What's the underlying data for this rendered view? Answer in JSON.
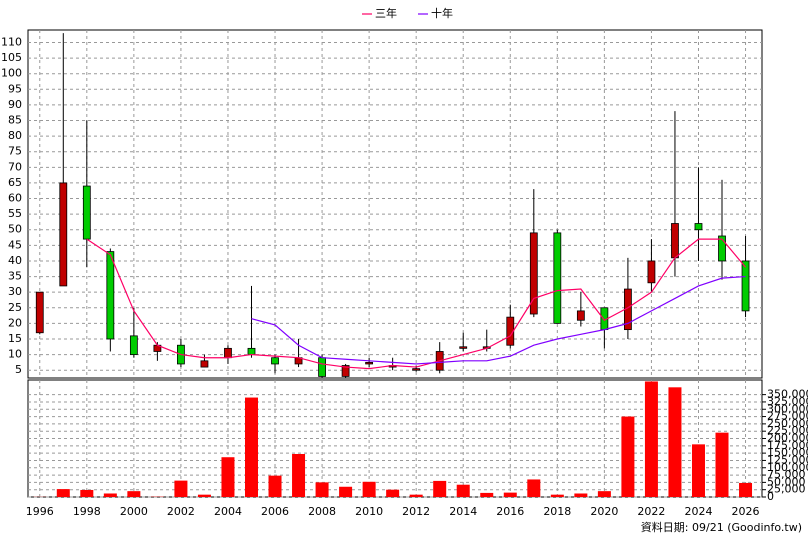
{
  "chart_data": [
    {
      "type": "candlestick",
      "x": [
        1996,
        1997,
        1998,
        1999,
        2000,
        2001,
        2002,
        2003,
        2004,
        2005,
        2006,
        2007,
        2008,
        2009,
        2010,
        2011,
        2012,
        2013,
        2014,
        2015,
        2016,
        2017,
        2018,
        2019,
        2020,
        2021,
        2022,
        2023,
        2024,
        2025,
        2026
      ],
      "open": [
        17,
        32,
        64,
        43,
        16,
        11,
        13,
        6,
        9,
        12,
        9,
        7,
        9,
        3,
        7,
        6,
        5,
        5,
        12,
        12,
        13,
        23,
        49,
        21,
        25,
        18,
        33,
        41,
        52,
        48,
        40
      ],
      "high": [
        30,
        113,
        85,
        44,
        25,
        14,
        15,
        10,
        13,
        32,
        10,
        15,
        10,
        7,
        9,
        9,
        6.5,
        14,
        17,
        18,
        26,
        63,
        50,
        30,
        25,
        41,
        47,
        88,
        70,
        66,
        48
      ],
      "low": [
        16.5,
        32,
        38,
        11,
        9,
        8,
        6,
        6,
        7,
        9,
        4,
        6,
        2.5,
        2.5,
        6,
        5,
        4.5,
        4,
        11,
        11,
        12,
        22,
        20,
        19,
        12,
        15,
        30,
        35,
        40,
        34,
        22
      ],
      "close": [
        30,
        65,
        47,
        15,
        10,
        13,
        7,
        8,
        12,
        10,
        7,
        9,
        3,
        6.5,
        7.5,
        6.5,
        5.5,
        11,
        12.5,
        12.5,
        22,
        49,
        20,
        24,
        18,
        31,
        40,
        52,
        50,
        40,
        24
      ],
      "up_color": "#c00000",
      "down_color": "#00cc00",
      "series": [
        {
          "name": "三年",
          "color": "#ff0066",
          "values": [
            null,
            null,
            47,
            42,
            24,
            13,
            10,
            9,
            9,
            10,
            9.5,
            9,
            7,
            6,
            5.5,
            6.5,
            6,
            8,
            10,
            12,
            16,
            28,
            30.5,
            31,
            21,
            25,
            30,
            41,
            47,
            47,
            38
          ]
        },
        {
          "name": "十年",
          "color": "#8000ff",
          "values": [
            null,
            null,
            null,
            null,
            null,
            null,
            null,
            null,
            null,
            21.5,
            19.5,
            13,
            9,
            8.5,
            8,
            7.5,
            7,
            7.5,
            8,
            8,
            9.5,
            13,
            15,
            16.5,
            18,
            20,
            24,
            28,
            32,
            34.5,
            35
          ]
        }
      ],
      "xlim": [
        1995.5,
        2026.7
      ],
      "xticks": [
        1996,
        1998,
        2000,
        2002,
        2004,
        2006,
        2008,
        2010,
        2012,
        2014,
        2016,
        2018,
        2020,
        2022,
        2024,
        2026
      ],
      "ylim": [
        2.5,
        114
      ],
      "yticks": [
        5,
        10,
        15,
        20,
        25,
        30,
        35,
        40,
        45,
        50,
        55,
        60,
        65,
        70,
        75,
        80,
        85,
        90,
        95,
        100,
        105,
        110
      ],
      "grid": true
    },
    {
      "type": "bar",
      "x": [
        1996,
        1997,
        1998,
        1999,
        2000,
        2001,
        2002,
        2003,
        2004,
        2005,
        2006,
        2007,
        2008,
        2009,
        2010,
        2011,
        2012,
        2013,
        2014,
        2015,
        2016,
        2017,
        2018,
        2019,
        2020,
        2021,
        2022,
        2023,
        2024,
        2025,
        2026
      ],
      "values": [
        500,
        27000,
        24000,
        12000,
        20000,
        1000,
        56000,
        8000,
        136000,
        340000,
        73000,
        147000,
        50000,
        35000,
        52000,
        25000,
        8000,
        55000,
        42000,
        14000,
        15000,
        60000,
        8000,
        12000,
        20000,
        275000,
        395000,
        375000,
        180000,
        220000,
        48000
      ],
      "color": "#ff0000",
      "ylim": [
        0,
        400000
      ],
      "yticks": [
        0,
        {
          "value": 25000,
          "label": "25,000"
        },
        {
          "value": 50000,
          "label": "50,000"
        },
        {
          "value": 75000,
          "label": "75,000"
        },
        {
          "value": 100000,
          "label": "100,000"
        },
        {
          "value": 125000,
          "label": "125,000"
        },
        {
          "value": 150000,
          "label": "150,000"
        },
        {
          "value": 175000,
          "label": "175,000"
        },
        {
          "value": 200000,
          "label": "200,000"
        },
        {
          "value": 225000,
          "label": "225,000"
        },
        {
          "value": 250000,
          "label": "250,000"
        },
        {
          "value": 275000,
          "label": "275,000"
        },
        {
          "value": 300000,
          "label": "300,000"
        },
        {
          "value": 325000,
          "label": "325,000"
        },
        {
          "value": 350000,
          "label": "350,000"
        }
      ],
      "grid": true,
      "source": "資料日期: 09/21 (Goodinfo.tw)"
    }
  ]
}
